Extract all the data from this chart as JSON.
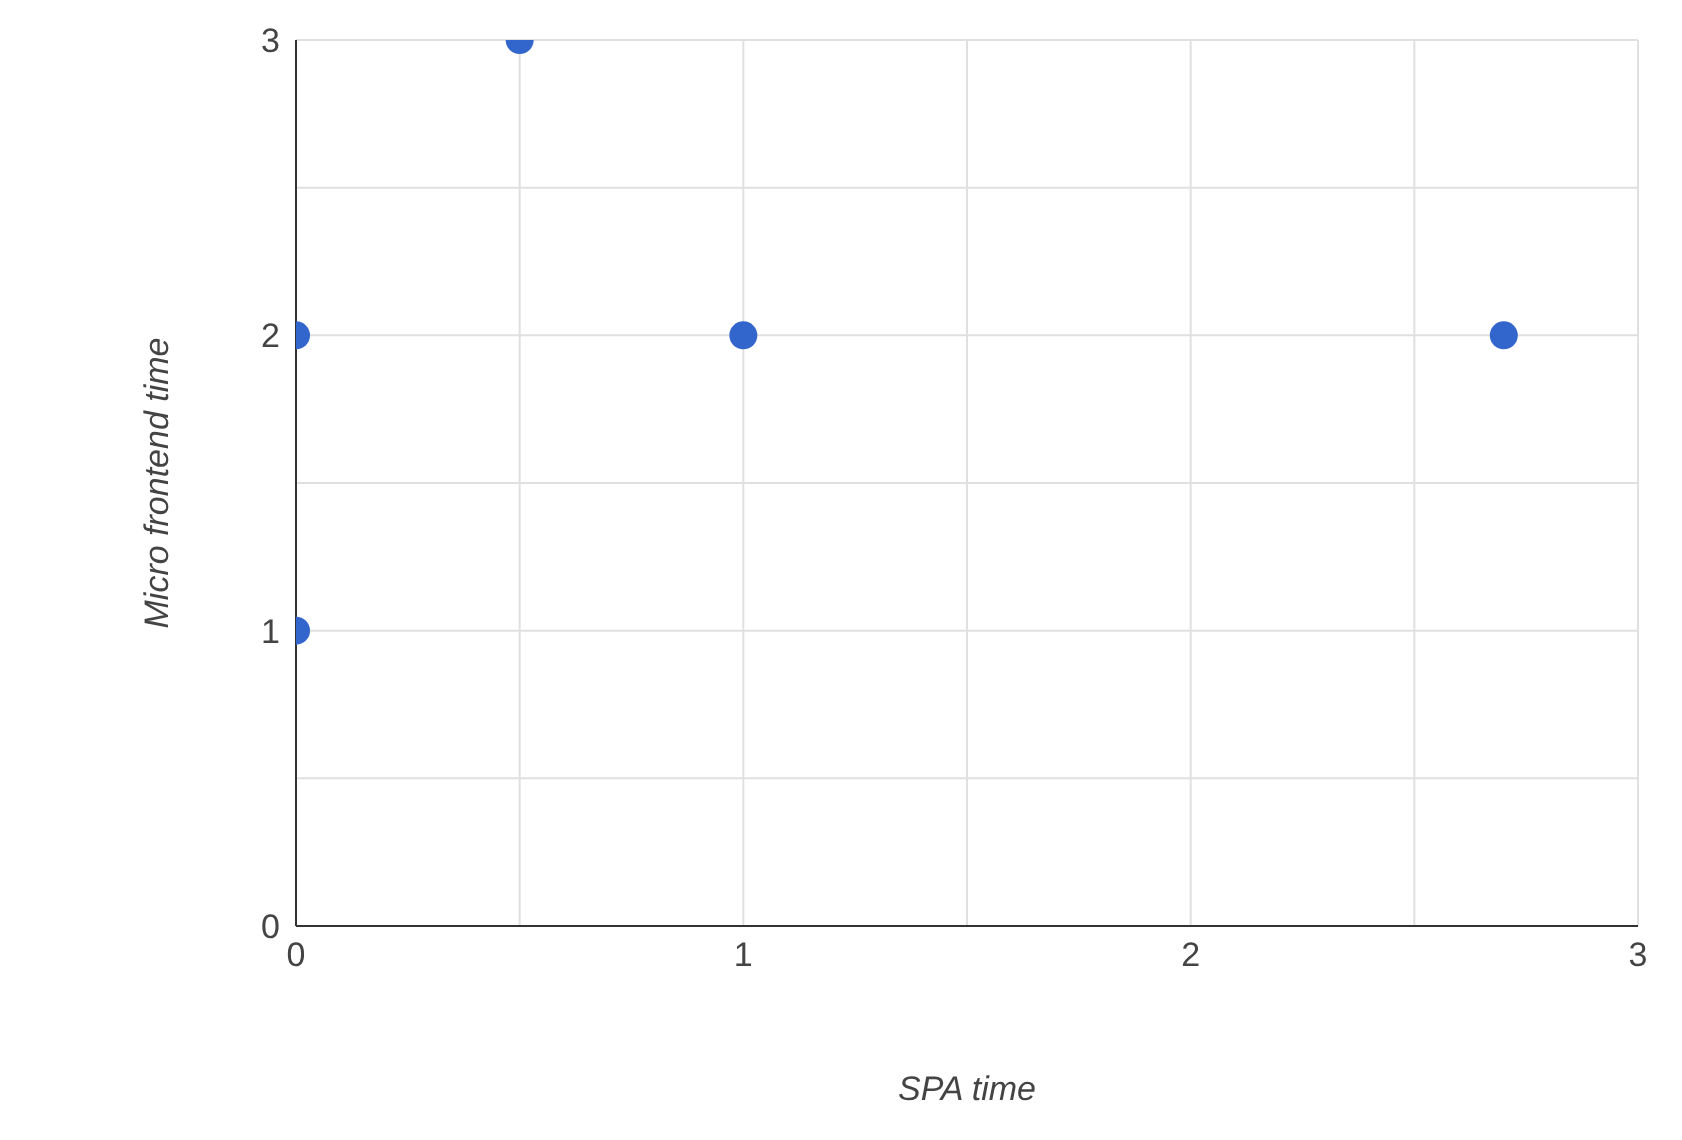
{
  "chart_data": {
    "type": "scatter",
    "xlabel": "SPA time",
    "ylabel": "Micro frontend time",
    "x": [
      0,
      0,
      0.5,
      1,
      2.7
    ],
    "series": [
      {
        "color": "#3366cc",
        "values": [
          2,
          1,
          3,
          2,
          2
        ]
      }
    ],
    "xlim": [
      0,
      3
    ],
    "xticks": [
      0,
      {
        "value": 0.5,
        "label": null
      },
      1,
      {
        "value": 1.5,
        "label": null
      },
      2,
      {
        "value": 2.5,
        "label": null
      },
      3
    ],
    "ylim": [
      0,
      3
    ],
    "yticks": [
      0,
      {
        "value": 0.5,
        "label": null
      },
      1,
      {
        "value": 1.5,
        "label": null
      },
      2,
      {
        "value": 2.5,
        "label": null
      },
      3
    ],
    "grid": true,
    "marker": "circle",
    "legend": false
  }
}
